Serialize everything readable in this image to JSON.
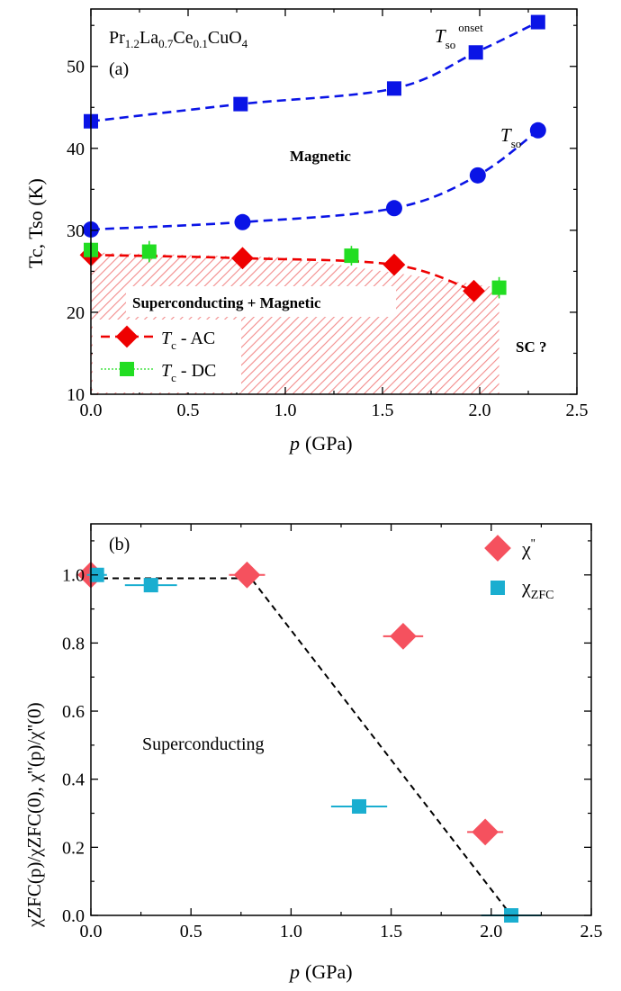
{
  "colors": {
    "blue": "#0a14e6",
    "red": "#ee0000",
    "green": "#22dd22",
    "hatch": "#f28b8b",
    "pink": "#f5515e",
    "cyan": "#1aaed0",
    "black": "#000000"
  },
  "chart_data": [
    {
      "type": "scatter",
      "panel_label": "(a)",
      "compound": {
        "text": "Pr1.2La0.7Ce0.1CuO4",
        "parts": [
          "Pr",
          "1.2",
          "La",
          "0.7",
          "Ce",
          "0.1",
          "CuO",
          "4"
        ]
      },
      "xlabel": {
        "main": "p",
        "unit": "(GPa)"
      },
      "ylabel": {
        "text": "Tc, Tso (K)"
      },
      "xlim": [
        0,
        2.5
      ],
      "ylim": [
        10,
        57
      ],
      "xticks": [
        {
          "v": 0,
          "label": "0.0"
        },
        {
          "v": 0.5,
          "label": "0.5"
        },
        {
          "v": 1.0,
          "label": "1.0"
        },
        {
          "v": 1.5,
          "label": "1.5"
        },
        {
          "v": 2.0,
          "label": "2.0"
        },
        {
          "v": 2.5,
          "label": "2.5"
        }
      ],
      "yticks": [
        {
          "v": 10,
          "label": "10"
        },
        {
          "v": 20,
          "label": "20"
        },
        {
          "v": 30,
          "label": "30"
        },
        {
          "v": 40,
          "label": "40"
        },
        {
          "v": 50,
          "label": "50"
        }
      ],
      "series": [
        {
          "key": "tso_onset",
          "marker": "square",
          "color": "blue",
          "points": [
            [
              0,
              43.3
            ],
            [
              0.77,
              45.4
            ],
            [
              1.56,
              47.3
            ],
            [
              1.98,
              51.7
            ],
            [
              2.3,
              55.4
            ]
          ],
          "fit": [
            [
              0,
              43.3
            ],
            [
              0.77,
              45.4
            ],
            [
              1.56,
              47.3
            ],
            [
              1.98,
              51.7
            ],
            [
              2.3,
              55.4
            ]
          ]
        },
        {
          "key": "tso",
          "marker": "circle",
          "color": "blue",
          "points": [
            [
              0,
              30.1
            ],
            [
              0.78,
              31.0
            ],
            [
              1.56,
              32.7
            ],
            [
              1.99,
              36.7
            ],
            [
              2.3,
              42.2
            ]
          ],
          "fit": [
            [
              0,
              30.1
            ],
            [
              0.78,
              31.0
            ],
            [
              1.56,
              32.7
            ],
            [
              1.99,
              36.7
            ],
            [
              2.3,
              42.2
            ]
          ]
        },
        {
          "key": "tc_ac",
          "name": "Tc - AC",
          "marker": "diamond",
          "color": "red",
          "points": [
            [
              0,
              27.0
            ],
            [
              0.78,
              26.6
            ],
            [
              1.56,
              25.8
            ],
            [
              1.97,
              22.6
            ]
          ],
          "fit": [
            [
              0,
              27.0
            ],
            [
              0.78,
              26.6
            ],
            [
              1.56,
              25.8
            ],
            [
              1.97,
              22.6
            ]
          ]
        },
        {
          "key": "tc_dc",
          "name": "Tc - DC",
          "marker": "square",
          "color": "green",
          "points": [
            [
              0,
              27.6
            ],
            [
              0.3,
              27.4
            ],
            [
              1.34,
              26.9
            ],
            [
              2.1,
              23.0
            ]
          ],
          "errors": [
            1.0,
            1.3,
            1.2,
            1.3
          ]
        }
      ],
      "hatch_boundary": [
        [
          0,
          27.3
        ],
        [
          1.0,
          26.7
        ],
        [
          2.1,
          23.0
        ]
      ],
      "legend": [
        {
          "series": "tc_ac",
          "label_main": "T",
          "label_sub": "c",
          "label_rest": " - AC"
        },
        {
          "series": "tc_dc",
          "label_main": "T",
          "label_sub": "c",
          "label_rest": " - DC"
        }
      ],
      "annotations": {
        "onset_main": "T",
        "onset_sub": "so",
        "onset_sup": "onset",
        "tso_main": "T",
        "tso_sub": "so",
        "magnetic": "Magnetic",
        "sc_mag": "Superconducting + Magnetic",
        "sc_q": "SC ?"
      }
    },
    {
      "type": "scatter",
      "panel_label": "(b)",
      "xlabel": {
        "main": "p",
        "unit": "(GPa)"
      },
      "ylabel": {
        "text": "χZFC(p)/χZFC(0), χ''(p)/χ''(0)"
      },
      "xlim": [
        0,
        2.5
      ],
      "ylim": [
        0,
        1.15
      ],
      "xticks": [
        {
          "v": 0,
          "label": "0.0"
        },
        {
          "v": 0.5,
          "label": "0.5"
        },
        {
          "v": 1.0,
          "label": "1.0"
        },
        {
          "v": 1.5,
          "label": "1.5"
        },
        {
          "v": 2.0,
          "label": "2.0"
        },
        {
          "v": 2.5,
          "label": "2.5"
        }
      ],
      "yticks": [
        {
          "v": 0,
          "label": "0.0"
        },
        {
          "v": 0.2,
          "label": "0.2"
        },
        {
          "v": 0.4,
          "label": "0.4"
        },
        {
          "v": 0.6,
          "label": "0.6"
        },
        {
          "v": 0.8,
          "label": "0.8"
        },
        {
          "v": 1.0,
          "label": "1.0"
        }
      ],
      "series": [
        {
          "key": "chi_pp",
          "name": "χ''",
          "marker": "diamond",
          "color": "pink",
          "points": [
            [
              0,
              1.0
            ],
            [
              0.78,
              1.0
            ],
            [
              1.56,
              0.82
            ],
            [
              1.97,
              0.245
            ]
          ],
          "xerr": [
            0,
            0.09,
            0.1,
            0.09
          ]
        },
        {
          "key": "chi_zfc",
          "name": "χZFC",
          "marker": "square",
          "color": "cyan",
          "points": [
            [
              0.03,
              1.0
            ],
            [
              0.3,
              0.97
            ],
            [
              1.34,
              0.32
            ],
            [
              2.1,
              0.0
            ]
          ],
          "xerr": [
            0.05,
            0.13,
            0.14,
            0.15
          ]
        }
      ],
      "guide_line": [
        [
          0,
          0.99
        ],
        [
          0.8,
          0.99
        ],
        [
          2.1,
          0.0
        ]
      ],
      "legend": [
        {
          "series": "chi_pp",
          "main": "χ",
          "sup": "''"
        },
        {
          "series": "chi_zfc",
          "main": "χ",
          "sub": "ZFC"
        }
      ],
      "annotations": {
        "region": "Superconducting"
      }
    }
  ]
}
